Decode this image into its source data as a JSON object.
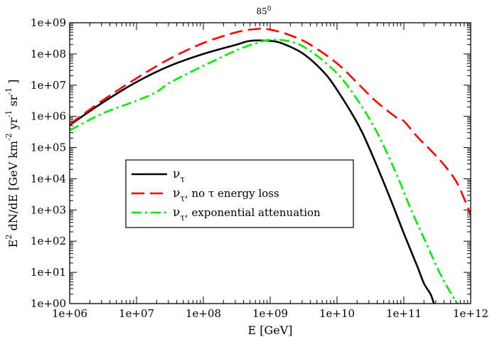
{
  "chart_data": {
    "type": "line",
    "title": "85",
    "title_superscript": "0",
    "xlabel": "E [GeV]",
    "ylabel_parts": [
      "E",
      "2",
      " dN/dE [GeV km",
      "-2",
      " yr",
      "-1",
      " sr",
      "-1",
      " ]"
    ],
    "xscale": "log",
    "yscale": "log",
    "xlim": [
      1000000.0,
      1000000000000.0
    ],
    "ylim": [
      1,
      1000000000.0
    ],
    "x_tick_labels": [
      "1e+06",
      "1e+07",
      "1e+08",
      "1e+09",
      "1e+10",
      "1e+11",
      "1e+12"
    ],
    "y_tick_labels": [
      "1e+00",
      "1e+01",
      "1e+02",
      "1e+03",
      "1e+04",
      "1e+05",
      "1e+06",
      "1e+07",
      "1e+08",
      "1e+09"
    ],
    "legend_position": "center-left",
    "series": [
      {
        "name": "nu_tau",
        "label_parts": [
          "ν",
          "τ",
          ""
        ],
        "color": "#000000",
        "dash": "solid",
        "log_x": [
          6.0,
          6.5,
          7.0,
          7.5,
          8.0,
          8.5,
          8.7,
          9.0,
          9.2,
          9.5,
          9.8,
          10.0,
          10.3,
          10.5,
          10.8,
          11.0,
          11.2,
          11.3,
          11.4,
          11.45
        ],
        "log_y": [
          5.72,
          6.45,
          7.1,
          7.62,
          8.0,
          8.3,
          8.42,
          8.42,
          8.32,
          8.0,
          7.42,
          6.85,
          5.8,
          4.9,
          3.35,
          2.25,
          1.2,
          0.65,
          0.3,
          0.0
        ]
      },
      {
        "name": "nu_tau_no_energy_loss",
        "label_parts": [
          "ν",
          "τ",
          ", no τ energy loss"
        ],
        "color": "#ff0000",
        "dash": "dashed",
        "log_x": [
          6.0,
          6.5,
          7.0,
          7.5,
          8.0,
          8.5,
          8.8,
          9.0,
          9.3,
          9.6,
          10.0,
          10.3,
          10.6,
          10.9,
          11.0,
          11.2,
          11.4,
          11.6,
          11.8,
          12.0
        ],
        "log_y": [
          5.75,
          6.52,
          7.22,
          7.85,
          8.35,
          8.7,
          8.8,
          8.78,
          8.6,
          8.3,
          7.7,
          7.08,
          6.45,
          5.95,
          5.85,
          5.35,
          4.92,
          4.45,
          3.85,
          2.85
        ]
      },
      {
        "name": "nu_tau_exponential_attenuation",
        "label_parts": [
          "ν",
          "τ",
          ", exponential attenuation"
        ],
        "color": "#00ee00",
        "dash": "dashdot",
        "log_x": [
          6.0,
          6.5,
          7.0,
          7.3,
          7.5,
          8.0,
          8.5,
          8.8,
          9.0,
          9.3,
          9.6,
          10.0,
          10.3,
          10.6,
          10.9,
          11.1,
          11.3,
          11.5,
          11.6,
          11.7,
          11.8
        ],
        "log_y": [
          5.55,
          6.1,
          6.5,
          6.78,
          7.08,
          7.62,
          8.12,
          8.35,
          8.45,
          8.4,
          8.1,
          7.38,
          6.55,
          5.48,
          4.1,
          3.05,
          2.1,
          1.15,
          0.72,
          0.35,
          0.0
        ]
      }
    ]
  }
}
